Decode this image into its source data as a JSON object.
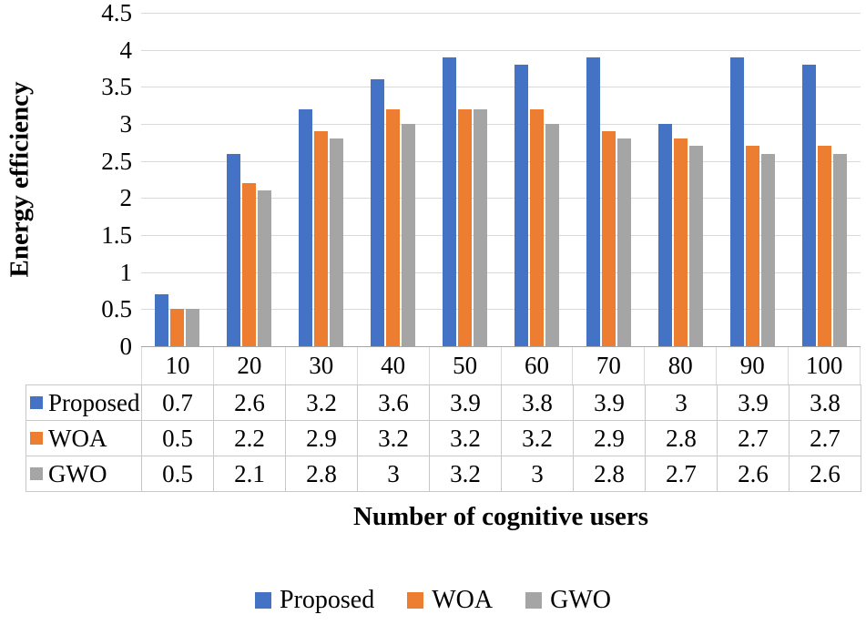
{
  "chart_data": {
    "type": "bar",
    "title": "",
    "xlabel": "Number of cognitive users",
    "ylabel": "Energy efficiency",
    "categories": [
      "10",
      "20",
      "30",
      "40",
      "50",
      "60",
      "70",
      "80",
      "90",
      "100"
    ],
    "series": [
      {
        "name": "Proposed",
        "color": "#4472C4",
        "values": [
          0.7,
          2.6,
          3.2,
          3.6,
          3.9,
          3.8,
          3.9,
          3,
          3.9,
          3.8
        ]
      },
      {
        "name": "WOA",
        "color": "#ED7D31",
        "values": [
          0.5,
          2.2,
          2.9,
          3.2,
          3.2,
          3.2,
          2.9,
          2.8,
          2.7,
          2.7
        ]
      },
      {
        "name": "GWO",
        "color": "#A5A5A5",
        "values": [
          0.5,
          2.1,
          2.8,
          3,
          3.2,
          3,
          2.8,
          2.7,
          2.6,
          2.6
        ]
      }
    ],
    "ylim": [
      0,
      4.5
    ],
    "ytick_step": 0.5,
    "yticks": [
      "0",
      "0.5",
      "1",
      "1.5",
      "2",
      "2.5",
      "3",
      "3.5",
      "4",
      "4.5"
    ],
    "grid": true,
    "legend_position": "bottom",
    "data_table_shown": true
  }
}
